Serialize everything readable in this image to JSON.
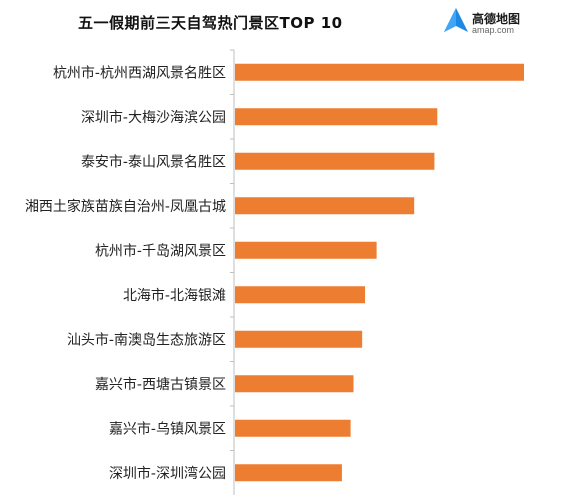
{
  "chart_data": {
    "type": "bar",
    "orientation": "horizontal",
    "title": "五一假期前三天自驾热门景区TOP 10",
    "categories": [
      "杭州市-杭州西湖风景名胜区",
      "深圳市-大梅沙海滨公园",
      "泰安市-泰山风景名胜区",
      "湘西土家族苗族自治州-凤凰古城",
      "杭州市-千岛湖风景区",
      "北海市-北海银滩",
      "汕头市-南澳岛生态旅游区",
      "嘉兴市-西塘古镇景区",
      "嘉兴市-乌镇风景区",
      "深圳市-深圳湾公园"
    ],
    "values": [
      100,
      70,
      69,
      62,
      49,
      45,
      44,
      41,
      40,
      37
    ],
    "xlim": [
      0,
      100
    ],
    "bar_color": "#ED7D31",
    "axis_color": "#BFBFBF",
    "grid": false,
    "legend": "none"
  },
  "logo": {
    "name_cn": "高德地图",
    "name_en": "amap.com",
    "color": "#1E88E5"
  }
}
